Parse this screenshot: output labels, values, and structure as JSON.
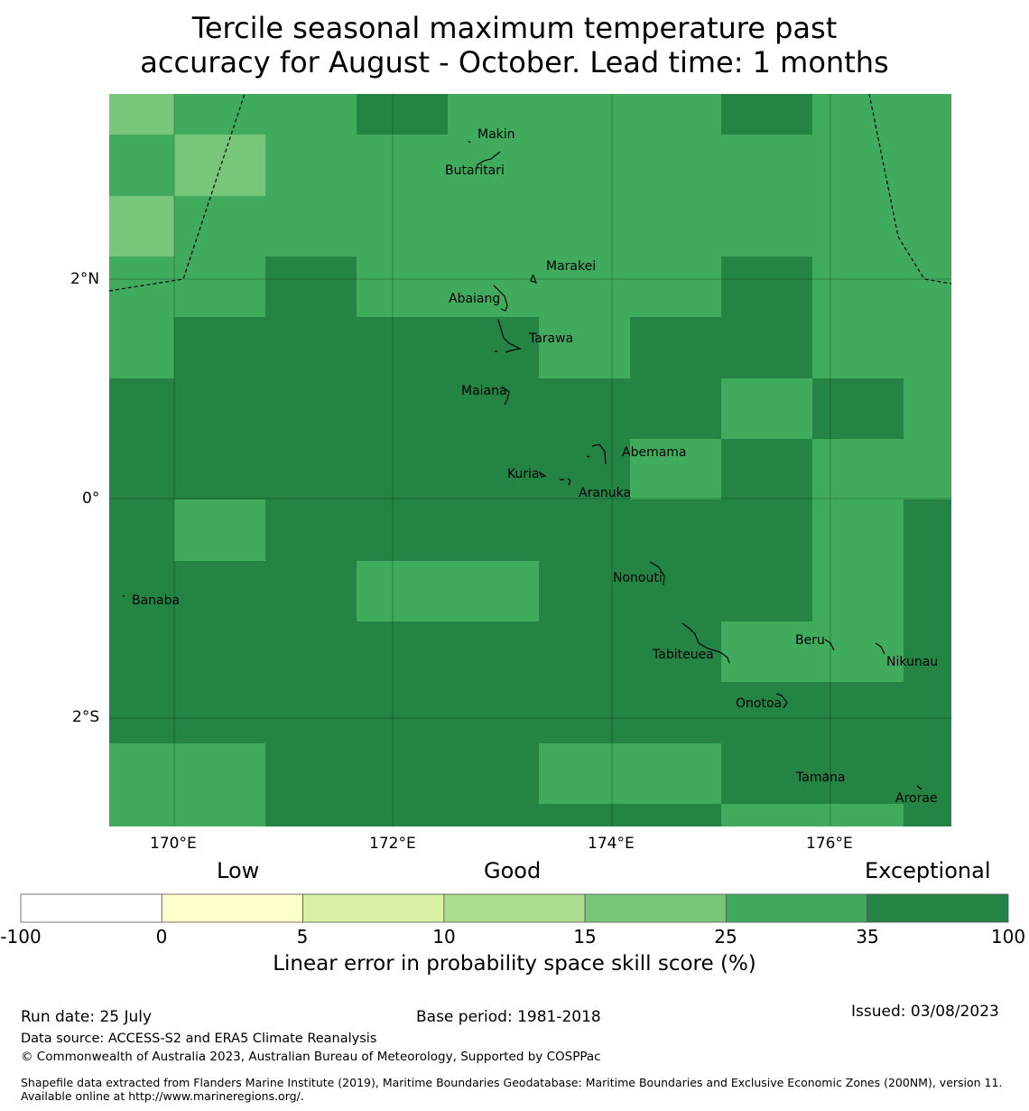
{
  "title_line1": "Tercile seasonal maximum temperature past",
  "title_line2": "accuracy for August - October. Lead time: 1 months",
  "axes": {
    "lon_ticks": [
      "170°E",
      "172°E",
      "174°E",
      "176°E"
    ],
    "lat_ticks": [
      "2°N",
      "0°",
      "2°S"
    ]
  },
  "islands": [
    {
      "name": "Makin"
    },
    {
      "name": "Butaritari"
    },
    {
      "name": "Marakei"
    },
    {
      "name": "Abaiang"
    },
    {
      "name": "Tarawa"
    },
    {
      "name": "Maiana"
    },
    {
      "name": "Abemama"
    },
    {
      "name": "Kuria"
    },
    {
      "name": "Aranuka"
    },
    {
      "name": "Nonouti"
    },
    {
      "name": "Banaba"
    },
    {
      "name": "Tabiteuea"
    },
    {
      "name": "Beru"
    },
    {
      "name": "Nikunau"
    },
    {
      "name": "Onotoa"
    },
    {
      "name": "Tamana"
    },
    {
      "name": "Arorae"
    }
  ],
  "legend": {
    "words": [
      "Low",
      "Good",
      "Exceptional"
    ],
    "ticks": [
      "-100",
      "0",
      "5",
      "10",
      "15",
      "25",
      "35",
      "100"
    ],
    "colors": [
      "#ffffff",
      "#ffffcc",
      "#d9f0a3",
      "#addd8e",
      "#78c679",
      "#41ab5d",
      "#238443"
    ],
    "label": "Linear error in probability space skill score (%)"
  },
  "footer": {
    "run_date": "Run date: 25 July",
    "base_period": "Base period: 1981-2018",
    "issued": "Issued: 03/08/2023",
    "data_source": "Data source: ACCESS-S2 and ERA5 Climate Reanalysis",
    "copyright": "© Commonwealth of Australia 2023, Australian Bureau of Meteorology, Supported by COSPPac",
    "shapefile": "Shapefile data extracted from Flanders Marine Institute (2019), Maritime Boundaries Geodatabase: Maritime Boundaries and Exclusive Economic Zones (200NM), version 11. Available online at http://www.marineregions.org/."
  },
  "chart_data": {
    "type": "heatmap",
    "title": "Tercile seasonal maximum temperature past accuracy for August - October. Lead time: 1 months",
    "colorbar_label": "Linear error in probability space skill score (%)",
    "category_colors": {
      "15-25": "#78c679",
      "25-35": "#41ab5d",
      "35-100": "#238443"
    },
    "grid_categories_rows_north_to_south": [
      [
        "15-25",
        "25-35",
        "25-35",
        "35-100",
        "25-35",
        "25-35",
        "25-35",
        "35-100",
        "25-35",
        "25-35"
      ],
      [
        "25-35",
        "15-25",
        "25-35",
        "25-35",
        "25-35",
        "25-35",
        "25-35",
        "25-35",
        "25-35",
        "25-35"
      ],
      [
        "15-25",
        "25-35",
        "25-35",
        "25-35",
        "25-35",
        "25-35",
        "25-35",
        "25-35",
        "25-35",
        "25-35"
      ],
      [
        "25-35",
        "25-35",
        "35-100",
        "25-35",
        "25-35",
        "25-35",
        "25-35",
        "35-100",
        "25-35",
        "25-35"
      ],
      [
        "25-35",
        "35-100",
        "35-100",
        "35-100",
        "35-100",
        "25-35",
        "35-100",
        "35-100",
        "25-35",
        "25-35"
      ],
      [
        "35-100",
        "35-100",
        "35-100",
        "35-100",
        "35-100",
        "35-100",
        "35-100",
        "25-35",
        "35-100",
        "25-35"
      ],
      [
        "35-100",
        "35-100",
        "35-100",
        "35-100",
        "35-100",
        "35-100",
        "25-35",
        "35-100",
        "25-35",
        "25-35"
      ],
      [
        "35-100",
        "25-35",
        "35-100",
        "35-100",
        "35-100",
        "35-100",
        "35-100",
        "35-100",
        "25-35",
        "35-100"
      ],
      [
        "35-100",
        "35-100",
        "35-100",
        "25-35",
        "25-35",
        "35-100",
        "35-100",
        "35-100",
        "25-35",
        "35-100"
      ],
      [
        "35-100",
        "35-100",
        "35-100",
        "35-100",
        "35-100",
        "35-100",
        "35-100",
        "25-35",
        "25-35",
        "35-100"
      ],
      [
        "35-100",
        "35-100",
        "35-100",
        "35-100",
        "35-100",
        "35-100",
        "35-100",
        "35-100",
        "35-100",
        "35-100"
      ],
      [
        "25-35",
        "25-35",
        "35-100",
        "35-100",
        "35-100",
        "25-35",
        "25-35",
        "35-100",
        "35-100",
        "35-100"
      ],
      [
        "25-35",
        "25-35",
        "35-100",
        "35-100",
        "35-100",
        "35-100",
        "35-100",
        "25-35",
        "25-35",
        "35-100"
      ]
    ]
  }
}
